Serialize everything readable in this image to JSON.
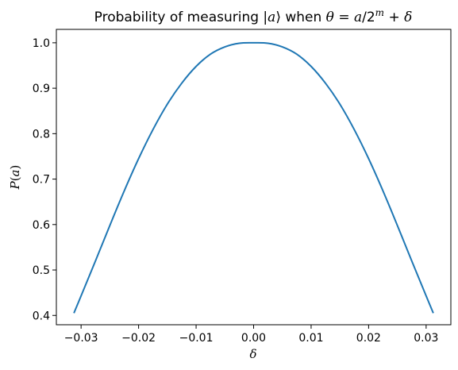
{
  "chart_data": {
    "type": "line",
    "title_parts": [
      "Probability of measuring |",
      "a",
      "⟩ when ",
      "θ",
      " = ",
      "a",
      "/2",
      "m",
      " + ",
      "δ"
    ],
    "xlabel": "δ",
    "ylabel_parts": [
      "P",
      "(",
      "a",
      ")"
    ],
    "xlim": [
      -0.0343,
      0.0343
    ],
    "ylim": [
      0.3795,
      1.0295
    ],
    "x_ticks": [
      -0.03,
      -0.02,
      -0.01,
      0.0,
      0.01,
      0.02,
      0.03
    ],
    "x_tick_labels": [
      "−0.03",
      "−0.02",
      "−0.01",
      "0.00",
      "0.01",
      "0.02",
      "0.03"
    ],
    "y_ticks": [
      0.4,
      0.5,
      0.6,
      0.7,
      0.8,
      0.9,
      1.0
    ],
    "y_tick_labels": [
      "0.4",
      "0.5",
      "0.6",
      "0.7",
      "0.8",
      "0.9",
      "1.0"
    ],
    "grid": false,
    "series": [
      {
        "color": "#1f77b4",
        "x": [
          -0.03125,
          -0.03,
          -0.0275,
          -0.025,
          -0.0225,
          -0.02,
          -0.0175,
          -0.015,
          -0.0125,
          -0.01,
          -0.0075,
          -0.005,
          -0.0025,
          0.0,
          0.0025,
          0.005,
          0.0075,
          0.01,
          0.0125,
          0.015,
          0.0175,
          0.02,
          0.0225,
          0.025,
          0.0275,
          0.03,
          0.03125
        ],
        "y": [
          0.405,
          0.443,
          0.52,
          0.598,
          0.674,
          0.745,
          0.809,
          0.865,
          0.911,
          0.948,
          0.975,
          0.991,
          0.999,
          1.0,
          0.999,
          0.991,
          0.975,
          0.948,
          0.911,
          0.865,
          0.809,
          0.745,
          0.674,
          0.598,
          0.52,
          0.443,
          0.405
        ]
      }
    ]
  }
}
